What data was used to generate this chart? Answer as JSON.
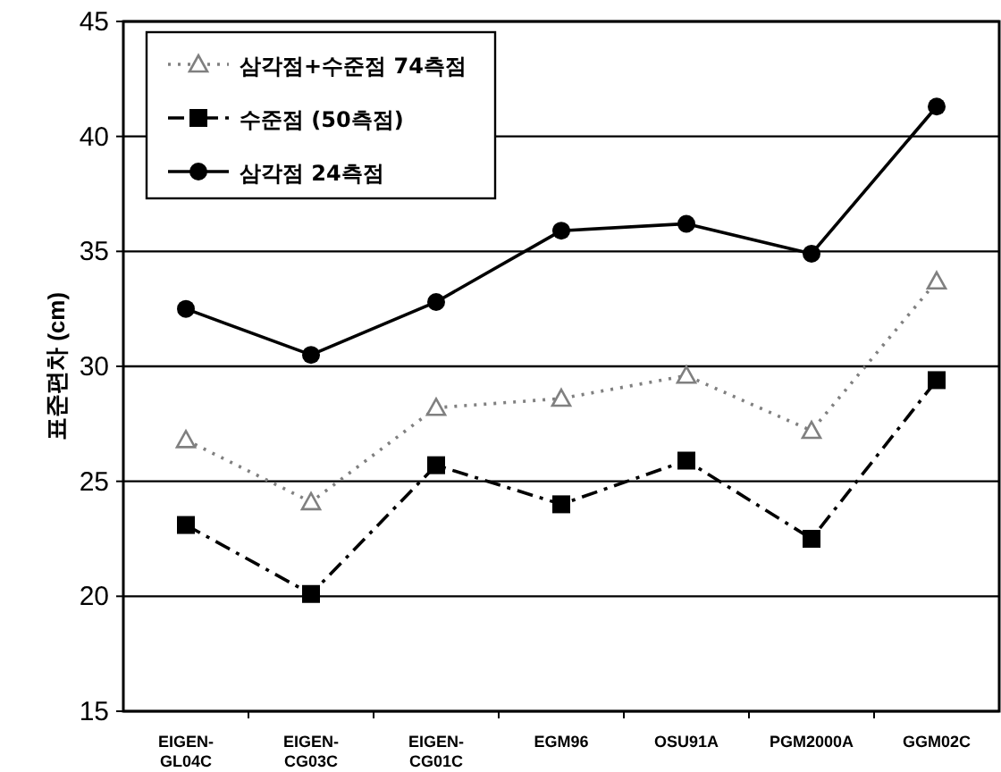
{
  "chart_data": {
    "type": "line",
    "ylabel": "표준편차 (cm)",
    "categories": [
      "EIGEN-GL04C",
      "EIGEN-CG03C",
      "EIGEN-CG01C",
      "EGM96",
      "OSU91A",
      "PGM2000A",
      "GGM02C"
    ],
    "series": [
      {
        "name": "삼각점+수준점 74측점",
        "color": "#808080",
        "marker": "triangle",
        "line_style": "dotted",
        "values": [
          26.8,
          24.1,
          28.2,
          28.6,
          29.6,
          27.2,
          33.7
        ]
      },
      {
        "name": "수준점 (50측점)",
        "color": "#000000",
        "marker": "square",
        "line_style": "dashed",
        "values": [
          23.1,
          20.1,
          25.7,
          24.0,
          25.9,
          22.5,
          29.4
        ]
      },
      {
        "name": "삼각점 24측점",
        "color": "#000000",
        "marker": "circle",
        "line_style": "solid",
        "values": [
          32.5,
          30.5,
          32.8,
          35.9,
          36.2,
          34.9,
          41.3
        ]
      }
    ],
    "ylim": [
      15,
      45
    ],
    "yticks": [
      15,
      20,
      25,
      30,
      35,
      40,
      45
    ],
    "grid": "y",
    "legend": "top left"
  }
}
